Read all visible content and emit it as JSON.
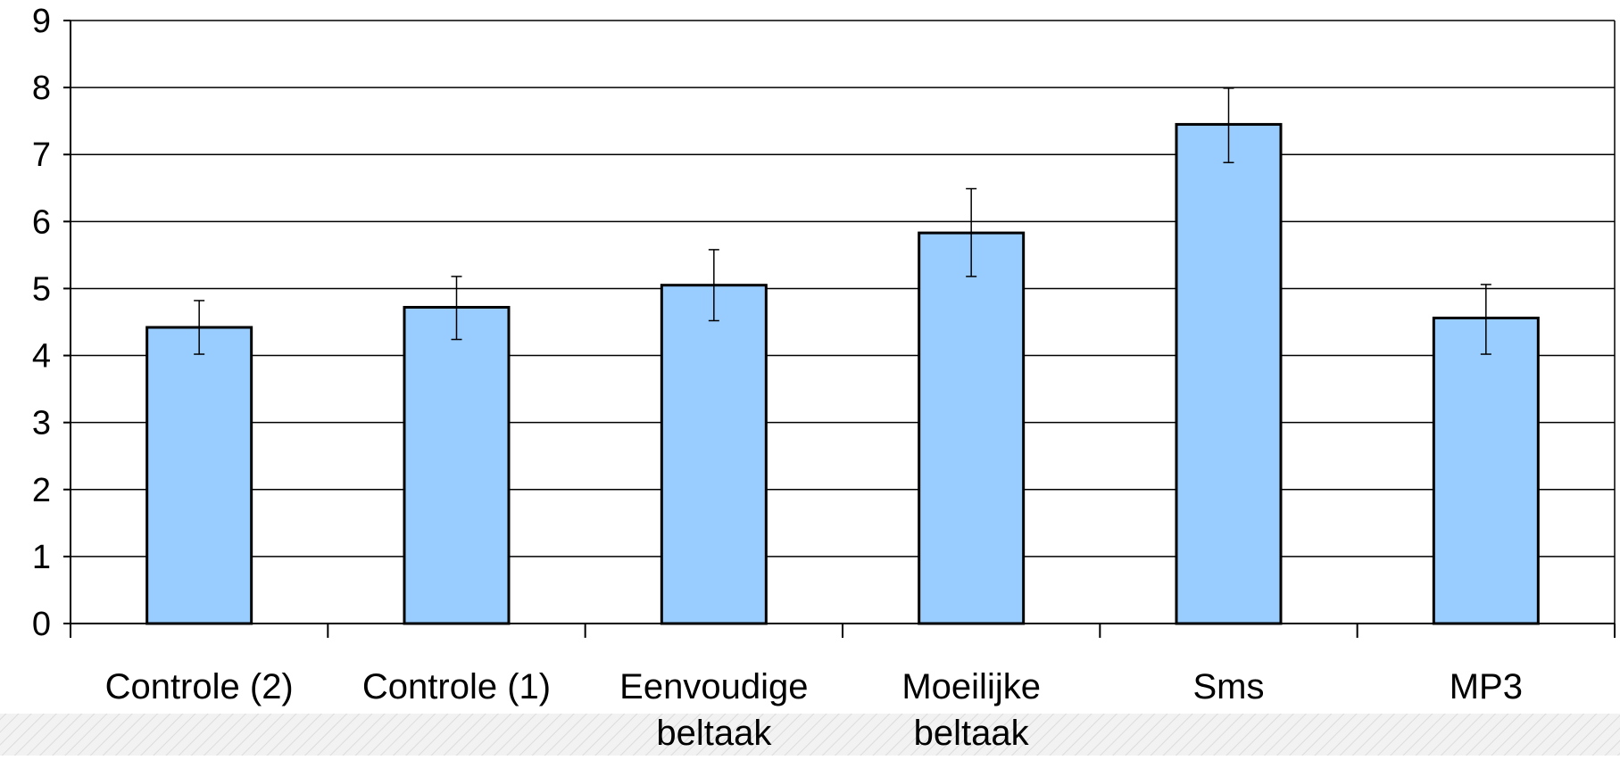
{
  "chart_data": {
    "type": "bar",
    "categories": [
      [
        "Controle (2)"
      ],
      [
        "Controle (1)"
      ],
      [
        "Eenvoudige",
        "beltaak"
      ],
      [
        "Moeilijke",
        "beltaak"
      ],
      [
        "Sms"
      ],
      [
        "MP3"
      ]
    ],
    "values": [
      4.42,
      4.72,
      5.05,
      5.83,
      7.45,
      4.56
    ],
    "error_low": [
      4.02,
      4.24,
      4.52,
      5.18,
      6.88,
      4.02
    ],
    "error_high": [
      4.82,
      5.18,
      5.58,
      6.49,
      7.99,
      5.06
    ],
    "ylim": [
      0,
      9
    ],
    "yticks": [
      0,
      1,
      2,
      3,
      4,
      5,
      6,
      7,
      8,
      9
    ],
    "grid": true,
    "legend": "none",
    "title": "",
    "xlabel": "",
    "ylabel": ""
  },
  "colors": {
    "bar_fill": "#99ccff",
    "bar_stroke": "#000000",
    "grid": "#000000",
    "axis": "#000000",
    "hatch_bg": "#f2f2f2",
    "hatch_line": "#dcdcdc"
  }
}
